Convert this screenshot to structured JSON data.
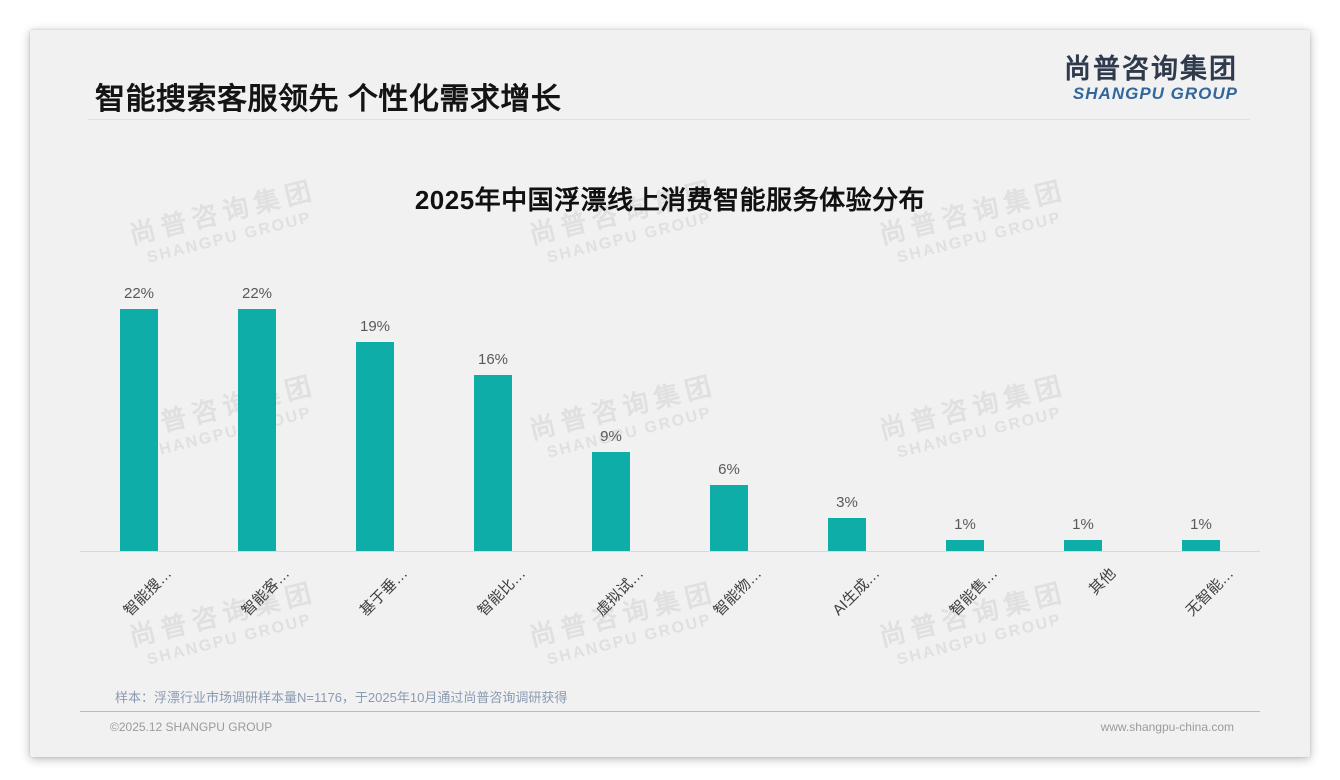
{
  "page": {
    "slide_title": "智能搜索客服领先 个性化需求增长",
    "logo": {
      "cn": "尚普咨询集团",
      "en": "SHANGPU GROUP"
    },
    "watermark": {
      "cn": "尚普咨询集团",
      "en": "SHANGPU GROUP"
    },
    "footnote": "样本：浮漂行业市场调研样本量N=1176，于2025年10月通过尚普咨询调研获得",
    "footer": {
      "copyright": "©2025.12 SHANGPU GROUP",
      "website": "www.shangpu-china.com"
    }
  },
  "chart_data": {
    "type": "bar",
    "title": "2025年中国浮漂线上消费智能服务体验分布",
    "categories": [
      "智能搜…",
      "智能客…",
      "基于垂…",
      "智能比…",
      "虚拟试…",
      "智能物…",
      "AI生成…",
      "智能售…",
      "其他",
      "无智能…"
    ],
    "values": [
      22,
      22,
      19,
      16,
      9,
      6,
      3,
      1,
      1,
      1
    ],
    "value_labels": [
      "22%",
      "22%",
      "19%",
      "16%",
      "9%",
      "6%",
      "3%",
      "1%",
      "1%",
      "1%"
    ],
    "bar_color": "#0eada8",
    "xlabel": "",
    "ylabel": "",
    "ylim": [
      0,
      24
    ],
    "grid": false,
    "legend": false,
    "value_labels_position": "above-bars",
    "category_label_rotation_deg": -45
  }
}
